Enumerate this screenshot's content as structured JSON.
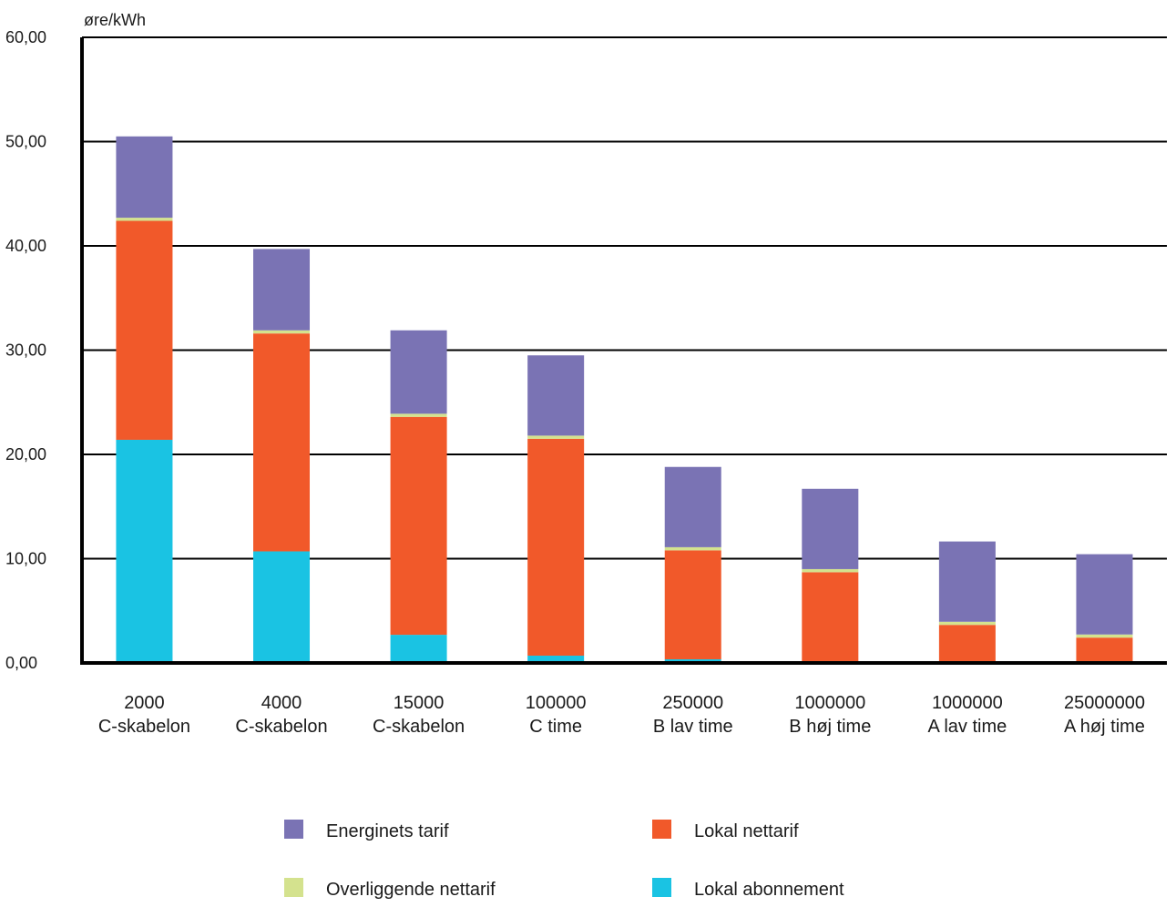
{
  "chart_data": {
    "type": "bar",
    "stacked": true,
    "title": "",
    "xlabel": "",
    "ylabel": "øre/kWh",
    "ylim": [
      0,
      60
    ],
    "yticks": [
      "0,00",
      "10,00",
      "20,00",
      "30,00",
      "40,00",
      "50,00",
      "60,00"
    ],
    "grid": true,
    "legend_position": "bottom",
    "categories": [
      [
        "2000",
        "C-skabelon"
      ],
      [
        "4000",
        "C-skabelon"
      ],
      [
        "15000",
        "C-skabelon"
      ],
      [
        "100000",
        "C time"
      ],
      [
        "250000",
        "B lav time"
      ],
      [
        "1000000",
        "B høj time"
      ],
      [
        "1000000",
        "A lav time"
      ],
      [
        "25000000",
        "A høj time"
      ]
    ],
    "series": [
      {
        "name": "Lokal abonnement",
        "color": "#1ac3e3",
        "values": [
          21.4,
          10.7,
          2.7,
          0.7,
          0.35,
          0.1,
          0.05,
          0.03
        ]
      },
      {
        "name": "Lokal nettarif",
        "color": "#f1592a",
        "values": [
          21.0,
          20.9,
          20.9,
          20.8,
          10.45,
          8.6,
          3.6,
          2.4
        ]
      },
      {
        "name": "Overliggende nettarif",
        "color": "#d4e28e",
        "values": [
          0.3,
          0.3,
          0.3,
          0.3,
          0.3,
          0.3,
          0.3,
          0.3
        ]
      },
      {
        "name": "Energinets tarif",
        "color": "#7a73b4",
        "values": [
          7.8,
          7.8,
          8.0,
          7.7,
          7.7,
          7.7,
          7.7,
          7.7
        ]
      }
    ],
    "legend_order": [
      "Energinets tarif",
      "Lokal nettarif",
      "Overliggende nettarif",
      "Lokal abonnement"
    ]
  }
}
